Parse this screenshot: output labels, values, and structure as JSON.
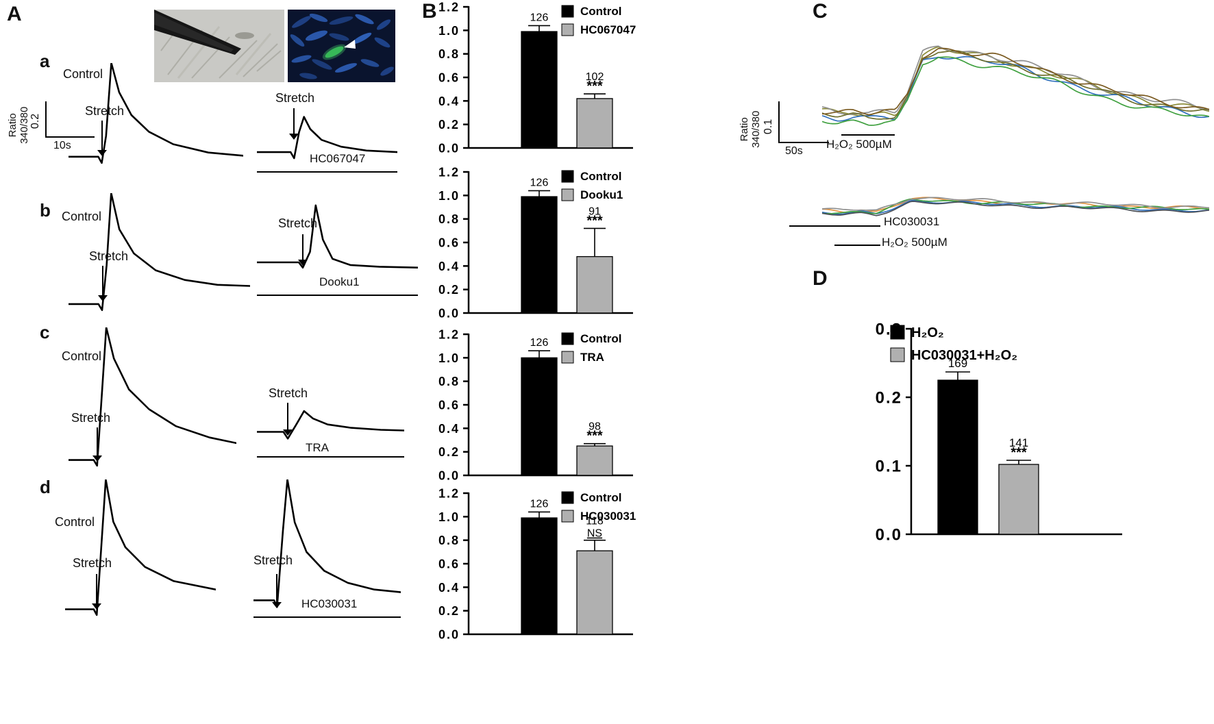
{
  "panelA": {
    "label": "A",
    "stretch_label": "Stretch",
    "scalebar": {
      "ylabel_line1": "Ratio",
      "ylabel_line2": "340/380",
      "y_value": "0.2",
      "x_value": "10s"
    },
    "rows": [
      {
        "label": "a",
        "control": "Control",
        "drug": "HC067047"
      },
      {
        "label": "b",
        "control": "Control",
        "drug": "Dooku1"
      },
      {
        "label": "c",
        "control": "Control",
        "drug": "TRA"
      },
      {
        "label": "d",
        "control": "Control",
        "drug": "HC030031"
      }
    ]
  },
  "panelB": {
    "label": "B"
  },
  "panelC": {
    "label": "C",
    "scalebar": {
      "ylabel_line1": "Ratio",
      "ylabel_line2": "340/380",
      "y_value": "0.1",
      "x_value": "50s"
    },
    "top_annotation": "H₂O₂ 500µM",
    "bottom_annotation_1": "HC030031",
    "bottom_annotation_2": "H₂O₂ 500µM"
  },
  "panelD": {
    "label": "D"
  },
  "chart_data": [
    {
      "id": "B1",
      "type": "bar",
      "categories": [
        "Control",
        "HC067047"
      ],
      "values": [
        0.99,
        0.42
      ],
      "errors": [
        0.05,
        0.04
      ],
      "counts": [
        "126",
        "102"
      ],
      "sig": [
        null,
        "***"
      ],
      "colors": [
        "#000000",
        "#b0b0b0"
      ],
      "ylim": [
        0,
        1.2
      ],
      "ytick_step": 0.2,
      "legend_position": "top-right"
    },
    {
      "id": "B2",
      "type": "bar",
      "categories": [
        "Control",
        "Dooku1"
      ],
      "values": [
        0.99,
        0.48
      ],
      "errors": [
        0.05,
        0.24
      ],
      "counts": [
        "126",
        "91"
      ],
      "sig": [
        null,
        "***"
      ],
      "colors": [
        "#000000",
        "#b0b0b0"
      ],
      "ylim": [
        0,
        1.2
      ],
      "ytick_step": 0.2,
      "legend_position": "top-right"
    },
    {
      "id": "B3",
      "type": "bar",
      "categories": [
        "Control",
        "TRA"
      ],
      "values": [
        1.0,
        0.25
      ],
      "errors": [
        0.06,
        0.02
      ],
      "counts": [
        "126",
        "98"
      ],
      "sig": [
        null,
        "***"
      ],
      "colors": [
        "#000000",
        "#b0b0b0"
      ],
      "ylim": [
        0,
        1.2
      ],
      "ytick_step": 0.2,
      "legend_position": "top-right"
    },
    {
      "id": "B4",
      "type": "bar",
      "categories": [
        "Control",
        "HC030031"
      ],
      "values": [
        0.99,
        0.71
      ],
      "errors": [
        0.05,
        0.09
      ],
      "counts": [
        "126",
        "118"
      ],
      "sig": [
        null,
        "NS"
      ],
      "colors": [
        "#000000",
        "#b0b0b0"
      ],
      "ylim": [
        0,
        1.2
      ],
      "ytick_step": 0.2,
      "legend_position": "top-right"
    },
    {
      "id": "D",
      "type": "bar",
      "categories": [
        "H₂O₂",
        "HC030031+H₂O₂"
      ],
      "values": [
        0.225,
        0.102
      ],
      "errors": [
        0.012,
        0.006
      ],
      "counts": [
        "169",
        "141"
      ],
      "sig": [
        null,
        "***"
      ],
      "colors": [
        "#000000",
        "#b0b0b0"
      ],
      "ylim": [
        0,
        0.3
      ],
      "ytick_step": 0.1,
      "legend_position": "top-right"
    },
    {
      "id": "Aa_left",
      "type": "line",
      "series": [
        {
          "name": "Control",
          "color": "#000000",
          "points": [
            [
              0,
              0.1
            ],
            [
              0.17,
              0.1
            ],
            [
              0.19,
              0.04
            ],
            [
              0.215,
              0.3
            ],
            [
              0.245,
              1.0
            ],
            [
              0.29,
              0.72
            ],
            [
              0.36,
              0.5
            ],
            [
              0.46,
              0.34
            ],
            [
              0.6,
              0.22
            ],
            [
              0.8,
              0.14
            ],
            [
              1,
              0.11
            ]
          ]
        }
      ]
    },
    {
      "id": "Aa_right",
      "type": "line",
      "series": [
        {
          "name": "HC067047",
          "color": "#000000",
          "points": [
            [
              0,
              0.16
            ],
            [
              0.24,
              0.16
            ],
            [
              0.265,
              0.08
            ],
            [
              0.3,
              0.42
            ],
            [
              0.335,
              0.62
            ],
            [
              0.38,
              0.46
            ],
            [
              0.46,
              0.32
            ],
            [
              0.6,
              0.23
            ],
            [
              0.78,
              0.18
            ],
            [
              1,
              0.16
            ]
          ]
        }
      ]
    },
    {
      "id": "Ab_left",
      "type": "line",
      "series": [
        {
          "name": "Control",
          "color": "#000000",
          "points": [
            [
              0,
              0.08
            ],
            [
              0.165,
              0.08
            ],
            [
              0.185,
              0.03
            ],
            [
              0.21,
              0.4
            ],
            [
              0.235,
              1.0
            ],
            [
              0.28,
              0.7
            ],
            [
              0.36,
              0.5
            ],
            [
              0.48,
              0.36
            ],
            [
              0.64,
              0.28
            ],
            [
              0.82,
              0.24
            ],
            [
              1,
              0.23
            ]
          ]
        }
      ]
    },
    {
      "id": "Ab_right",
      "type": "line",
      "series": [
        {
          "name": "Dooku1",
          "color": "#000000",
          "points": [
            [
              0,
              0.32
            ],
            [
              0.26,
              0.32
            ],
            [
              0.285,
              0.26
            ],
            [
              0.33,
              0.44
            ],
            [
              0.365,
              0.97
            ],
            [
              0.41,
              0.58
            ],
            [
              0.47,
              0.36
            ],
            [
              0.58,
              0.29
            ],
            [
              0.76,
              0.27
            ],
            [
              1,
              0.26
            ]
          ]
        }
      ]
    },
    {
      "id": "Ac_left",
      "type": "line",
      "series": [
        {
          "name": "Control",
          "color": "#000000",
          "points": [
            [
              0,
              0.06
            ],
            [
              0.15,
              0.06
            ],
            [
              0.17,
              0.02
            ],
            [
              0.2,
              0.55
            ],
            [
              0.225,
              1.0
            ],
            [
              0.27,
              0.78
            ],
            [
              0.36,
              0.56
            ],
            [
              0.48,
              0.42
            ],
            [
              0.64,
              0.3
            ],
            [
              0.84,
              0.22
            ],
            [
              1,
              0.18
            ]
          ]
        }
      ]
    },
    {
      "id": "Ac_right",
      "type": "line",
      "series": [
        {
          "name": "TRA",
          "color": "#000000",
          "points": [
            [
              0,
              0.24
            ],
            [
              0.18,
              0.24
            ],
            [
              0.21,
              0.14
            ],
            [
              0.27,
              0.36
            ],
            [
              0.32,
              0.55
            ],
            [
              0.38,
              0.44
            ],
            [
              0.48,
              0.35
            ],
            [
              0.64,
              0.3
            ],
            [
              0.84,
              0.27
            ],
            [
              1,
              0.26
            ]
          ]
        }
      ]
    },
    {
      "id": "Ad_left",
      "type": "line",
      "series": [
        {
          "name": "Control",
          "color": "#000000",
          "points": [
            [
              0,
              0.08
            ],
            [
              0.19,
              0.08
            ],
            [
              0.21,
              0.04
            ],
            [
              0.245,
              0.6
            ],
            [
              0.27,
              1.0
            ],
            [
              0.32,
              0.7
            ],
            [
              0.4,
              0.52
            ],
            [
              0.53,
              0.38
            ],
            [
              0.72,
              0.28
            ],
            [
              1,
              0.22
            ]
          ]
        }
      ]
    },
    {
      "id": "Ad_right",
      "type": "line",
      "series": [
        {
          "name": "HC030031",
          "color": "#000000",
          "points": [
            [
              0,
              0.1
            ],
            [
              0.14,
              0.1
            ],
            [
              0.16,
              0.05
            ],
            [
              0.2,
              0.62
            ],
            [
              0.23,
              1.0
            ],
            [
              0.28,
              0.68
            ],
            [
              0.36,
              0.46
            ],
            [
              0.48,
              0.32
            ],
            [
              0.64,
              0.23
            ],
            [
              0.82,
              0.18
            ],
            [
              1,
              0.16
            ]
          ]
        }
      ]
    },
    {
      "id": "C_top",
      "type": "line",
      "stimulus": "H₂O₂ 500µM",
      "base": [
        [
          0,
          0.32
        ],
        [
          0.04,
          0.3
        ],
        [
          0.08,
          0.31
        ],
        [
          0.12,
          0.29
        ],
        [
          0.16,
          0.31
        ],
        [
          0.19,
          0.3
        ],
        [
          0.22,
          0.46
        ],
        [
          0.26,
          0.8
        ],
        [
          0.3,
          0.86
        ],
        [
          0.36,
          0.83
        ],
        [
          0.44,
          0.79
        ],
        [
          0.52,
          0.72
        ],
        [
          0.62,
          0.62
        ],
        [
          0.74,
          0.5
        ],
        [
          0.86,
          0.4
        ],
        [
          1,
          0.33
        ]
      ],
      "traces": [
        {
          "color": "#8a8a35",
          "yoff": 0.02,
          "phase": 0.6
        },
        {
          "color": "#2f6fbd",
          "yoff": -0.02,
          "phase": 2.2
        },
        {
          "color": "#3fa03f",
          "yoff": -0.05,
          "phase": 4.1
        },
        {
          "color": "#8f8f8f",
          "yoff": 0.04,
          "phase": 1.3
        },
        {
          "color": "#6e6e2c",
          "yoff": 0.0,
          "phase": 3.4
        },
        {
          "color": "#7a5a20",
          "yoff": 0.03,
          "phase": 5.0
        }
      ]
    },
    {
      "id": "C_bottom",
      "type": "line",
      "stimulus": "HC030031 + H₂O₂ 500µM",
      "base": [
        [
          0,
          0.3
        ],
        [
          0.05,
          0.28
        ],
        [
          0.1,
          0.3
        ],
        [
          0.14,
          0.28
        ],
        [
          0.18,
          0.38
        ],
        [
          0.23,
          0.52
        ],
        [
          0.3,
          0.5
        ],
        [
          0.4,
          0.47
        ],
        [
          0.52,
          0.44
        ],
        [
          0.66,
          0.41
        ],
        [
          0.82,
          0.37
        ],
        [
          1,
          0.34
        ]
      ],
      "traces": [
        {
          "color": "#e0923f",
          "yoff": 0.02,
          "phase": 1.0
        },
        {
          "color": "#2f6fbd",
          "yoff": -0.02,
          "phase": 2.8
        },
        {
          "color": "#3fa03f",
          "yoff": 0.0,
          "phase": 4.5
        },
        {
          "color": "#8f8f8f",
          "yoff": 0.04,
          "phase": 0.2
        },
        {
          "color": "#4a4f57",
          "yoff": -0.04,
          "phase": 3.1
        }
      ]
    }
  ]
}
